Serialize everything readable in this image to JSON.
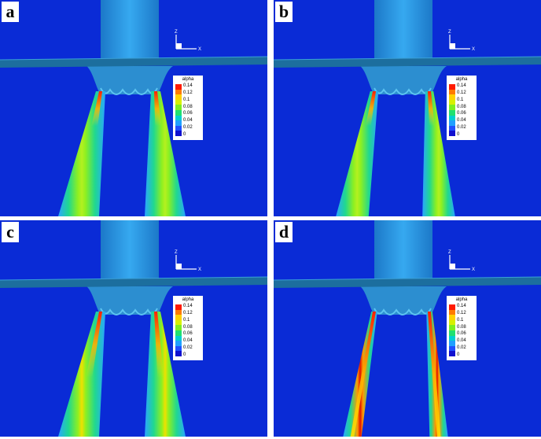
{
  "panels": [
    {
      "label": "a",
      "jet_style": "wide"
    },
    {
      "label": "b",
      "jet_style": "medium"
    },
    {
      "label": "c",
      "jet_style": "wide-bright"
    },
    {
      "label": "d",
      "jet_style": "narrow"
    }
  ],
  "axis": {
    "z_label": "Z",
    "x_label": "X"
  },
  "legend": {
    "title": "alpha",
    "ticks": [
      "0.14",
      "0.12",
      "0.1",
      "0.08",
      "0.06",
      "0.04",
      "0.02",
      "0"
    ],
    "colors": [
      "#ff1a00",
      "#ff7a00",
      "#ffd200",
      "#d8f000",
      "#7df020",
      "#20e070",
      "#00d0d0",
      "#20a0ff",
      "#2050ff",
      "#1010d0"
    ]
  },
  "colors": {
    "background": "#0a2bd6",
    "tower": "#36a9f0",
    "plate": "#1c6e9e"
  }
}
